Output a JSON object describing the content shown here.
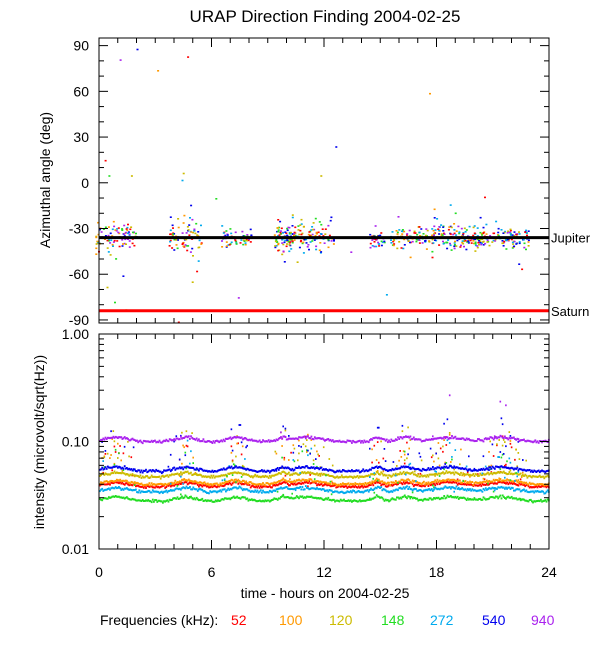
{
  "chart_data": [
    {
      "type": "scatter",
      "title": "URAP Direction Finding  2004-02-25",
      "ylabel": "Azimuthal angle (deg)",
      "xlim": [
        0,
        24
      ],
      "ylim": [
        -92,
        95
      ],
      "yticks": [
        90,
        60,
        30,
        0,
        -30,
        -60,
        -90
      ],
      "ytick_labels": [
        "90",
        "60",
        "30",
        "0",
        "-30",
        "-60",
        "-90"
      ],
      "reference_lines": [
        {
          "name": "Jupiter",
          "y": -36,
          "color": "#000000"
        },
        {
          "name": "Saturn",
          "y": -84,
          "color": "#ff0000"
        }
      ],
      "clusters": [
        {
          "center": 0.9,
          "half_width": 1.1,
          "y_center": -36,
          "spread": 10
        },
        {
          "center": 4.6,
          "half_width": 0.9,
          "y_center": -36,
          "spread": 12
        },
        {
          "center": 7.3,
          "half_width": 0.8,
          "y_center": -36,
          "spread": 6
        },
        {
          "center": 9.8,
          "half_width": 0.5,
          "y_center": -35,
          "spread": 6
        },
        {
          "center": 11.0,
          "half_width": 1.5,
          "y_center": -35,
          "spread": 10
        },
        {
          "center": 14.8,
          "half_width": 0.4,
          "y_center": -37,
          "spread": 5
        },
        {
          "center": 16.3,
          "half_width": 0.8,
          "y_center": -36,
          "spread": 6
        },
        {
          "center": 18.6,
          "half_width": 1.6,
          "y_center": -35,
          "spread": 8
        },
        {
          "center": 21.4,
          "half_width": 1.5,
          "y_center": -36,
          "spread": 7
        }
      ],
      "outliers": [
        {
          "x": 0.3,
          "y": 15
        },
        {
          "x": 0.5,
          "y": 5
        },
        {
          "x": 1.1,
          "y": 81
        },
        {
          "x": 1.7,
          "y": 5
        },
        {
          "x": 2.0,
          "y": 88
        },
        {
          "x": 3.1,
          "y": 74
        },
        {
          "x": 4.4,
          "y": 2
        },
        {
          "x": 4.7,
          "y": 83
        },
        {
          "x": 6.2,
          "y": -10
        },
        {
          "x": 7.4,
          "y": -75
        },
        {
          "x": 11.8,
          "y": 5
        },
        {
          "x": 12.6,
          "y": 24
        },
        {
          "x": 17.6,
          "y": 59
        },
        {
          "x": 15.3,
          "y": -73
        },
        {
          "x": 4.2,
          "y": -91
        },
        {
          "x": 0.8,
          "y": -78
        },
        {
          "x": 13.4,
          "y": -45
        },
        {
          "x": 1.4,
          "y": -83
        }
      ]
    },
    {
      "type": "line",
      "ylabel": "intensity (microvolt/sqrt(Hz))",
      "xlabel": "time - hours on 2004-02-25",
      "xlim": [
        0,
        24
      ],
      "ylim": [
        0.01,
        1.0
      ],
      "yscale": "log",
      "x": [
        0,
        6,
        12,
        18,
        24
      ],
      "xtick_labels": [
        "0",
        "6",
        "12",
        "18",
        "24"
      ],
      "yticks": [
        1.0,
        0.1,
        0.01
      ],
      "ytick_labels": [
        "1.00",
        "0.10",
        "0.01"
      ],
      "series": [
        {
          "name": "52",
          "baseline": 0.038,
          "color": "#ff0000"
        },
        {
          "name": "100",
          "baseline": 0.04,
          "color": "#ff9900"
        },
        {
          "name": "120",
          "baseline": 0.047,
          "color": "#ccbb00"
        },
        {
          "name": "148",
          "baseline": 0.028,
          "color": "#22dd22"
        },
        {
          "name": "272",
          "baseline": 0.034,
          "color": "#00aaee"
        },
        {
          "name": "540",
          "baseline": 0.053,
          "color": "#0000ee"
        },
        {
          "name": "940",
          "baseline": 0.1,
          "color": "#aa22ee"
        }
      ]
    }
  ],
  "legend": {
    "label": "Frequencies (kHz):",
    "items": [
      {
        "label": "52",
        "color": "#ff0000"
      },
      {
        "label": "100",
        "color": "#ff9900"
      },
      {
        "label": "120",
        "color": "#ccbb00"
      },
      {
        "label": "148",
        "color": "#22dd22"
      },
      {
        "label": "272",
        "color": "#00aaee"
      },
      {
        "label": "540",
        "color": "#0000ee"
      },
      {
        "label": "940",
        "color": "#aa22ee"
      }
    ]
  }
}
